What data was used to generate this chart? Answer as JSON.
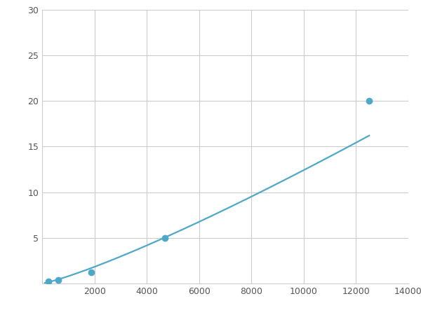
{
  "x_points": [
    250,
    625,
    1875,
    4688,
    12500
  ],
  "y_points": [
    0.2,
    0.4,
    1.2,
    5.0,
    20.0
  ],
  "line_color": "#4EA8C8",
  "marker_color": "#4EA8C8",
  "marker_size": 6,
  "line_width": 1.6,
  "xlim": [
    0,
    14000
  ],
  "ylim": [
    0,
    30
  ],
  "xticks": [
    2000,
    4000,
    6000,
    8000,
    10000,
    12000,
    14000
  ],
  "yticks": [
    5,
    10,
    15,
    20,
    25,
    30
  ],
  "grid_color": "#cccccc",
  "background_color": "#ffffff",
  "figsize": [
    6.0,
    4.5
  ],
  "dpi": 100
}
